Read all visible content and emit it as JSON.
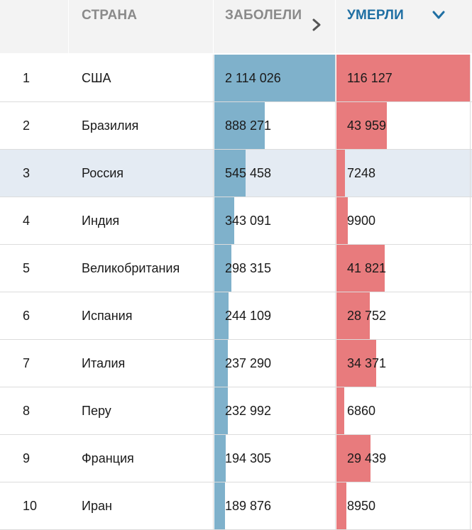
{
  "header": {
    "country": "СТРАНА",
    "cases": "ЗАБОЛЕЛИ",
    "deaths": "УМЕРЛИ"
  },
  "colors": {
    "cases_bar": "#7fb1cb",
    "deaths_bar": "#e87b7d",
    "highlight_row": "#e4ebf3",
    "active_header": "#1f6fa3"
  },
  "chart_data": {
    "type": "table",
    "sort_by": "УМЕРЛИ",
    "highlighted_country": "Россия",
    "rows": [
      {
        "rank": "1",
        "country": "США",
        "cases": 2114026,
        "cases_label": "2 114 026",
        "deaths": 116127,
        "deaths_label": "116 127"
      },
      {
        "rank": "2",
        "country": "Бразилия",
        "cases": 888271,
        "cases_label": "888 271",
        "deaths": 43959,
        "deaths_label": "43 959"
      },
      {
        "rank": "3",
        "country": "Россия",
        "cases": 545458,
        "cases_label": "545 458",
        "deaths": 7248,
        "deaths_label": "7248"
      },
      {
        "rank": "4",
        "country": "Индия",
        "cases": 343091,
        "cases_label": "343 091",
        "deaths": 9900,
        "deaths_label": "9900"
      },
      {
        "rank": "5",
        "country": "Великобритания",
        "cases": 298315,
        "cases_label": "298 315",
        "deaths": 41821,
        "deaths_label": "41 821"
      },
      {
        "rank": "6",
        "country": "Испания",
        "cases": 244109,
        "cases_label": "244 109",
        "deaths": 28752,
        "deaths_label": "28 752"
      },
      {
        "rank": "7",
        "country": "Италия",
        "cases": 237290,
        "cases_label": "237 290",
        "deaths": 34371,
        "deaths_label": "34 371"
      },
      {
        "rank": "8",
        "country": "Перу",
        "cases": 232992,
        "cases_label": "232 992",
        "deaths": 6860,
        "deaths_label": "6860"
      },
      {
        "rank": "9",
        "country": "Франция",
        "cases": 194305,
        "cases_label": "194 305",
        "deaths": 29439,
        "deaths_label": "29 439"
      },
      {
        "rank": "10",
        "country": "Иран",
        "cases": 189876,
        "cases_label": "189 876",
        "deaths": 8950,
        "deaths_label": "8950"
      }
    ]
  }
}
